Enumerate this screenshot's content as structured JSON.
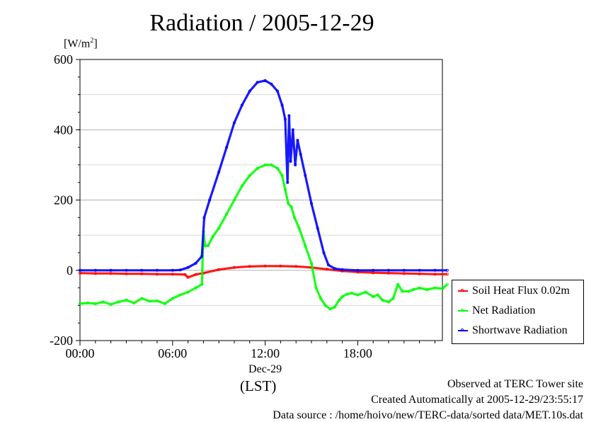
{
  "title": "Radiation / 2005-12-29",
  "unit_label": "[W/m",
  "unit_sup": "2",
  "unit_close": "]",
  "xlabel_date": "Dec-29",
  "xlabel_tz": "(LST)",
  "footer": {
    "observed": "Observed at TERC Tower site",
    "created": "Created Automatically at 2005-12-29/23:55:17",
    "source": "Data source : /home/hoivo/new/TERC-data/sorted  data/MET.10s.dat"
  },
  "colors": {
    "soil": "#ff0000",
    "net": "#00ff00",
    "short": "#0000ff",
    "grid": "#b0b0b0"
  },
  "chart_data": {
    "type": "line",
    "title": "Radiation / 2005-12-29",
    "ylabel": "[W/m2]",
    "xlabel": "Dec-29 (LST)",
    "xlim": [
      0,
      23.83
    ],
    "ylim": [
      -200,
      600
    ],
    "yticks": [
      -200,
      0,
      200,
      400,
      600
    ],
    "ytick_labels": [
      "-200",
      "0",
      "200",
      "400",
      "600"
    ],
    "xticks": [
      0,
      6,
      12,
      18
    ],
    "xtick_labels": [
      "00:00",
      "06:00",
      "12:00",
      "18:00"
    ],
    "grid": true,
    "legend_position": "right",
    "series": [
      {
        "name": "Soil Heat Flux 0.02m",
        "color": "#ff0000",
        "x": [
          0,
          1,
          2,
          3,
          4,
          5,
          6,
          6.8,
          7,
          7.5,
          8,
          9,
          10,
          11,
          12,
          13,
          14,
          15,
          16,
          17,
          18,
          19,
          20,
          21,
          22,
          23,
          23.8
        ],
        "y": [
          -8,
          -9,
          -9,
          -10,
          -10,
          -11,
          -11,
          -12,
          -20,
          -12,
          -8,
          2,
          8,
          11,
          12,
          12,
          11,
          8,
          3,
          -2,
          -5,
          -7,
          -8,
          -9,
          -10,
          -11,
          -11
        ]
      },
      {
        "name": "Net Radiation",
        "color": "#00ff00",
        "x": [
          0,
          0.5,
          1,
          1.5,
          2,
          2.5,
          3,
          3.5,
          4,
          4.5,
          5,
          5.5,
          6,
          6.5,
          7,
          7.5,
          7.9,
          8.0,
          8.1,
          8.3,
          8.6,
          9,
          9.5,
          10,
          10.5,
          11,
          11.5,
          12,
          12.4,
          12.8,
          13.1,
          13.3,
          13.5,
          13.7,
          13.9,
          14.2,
          14.6,
          15,
          15.3,
          15.6,
          15.9,
          16.2,
          16.5,
          16.8,
          17,
          17.3,
          17.6,
          18,
          18.5,
          19,
          19.3,
          19.6,
          20,
          20.3,
          20.6,
          20.9,
          21.3,
          21.6,
          22,
          22.5,
          23,
          23.5,
          23.8
        ],
        "y": [
          -95,
          -93,
          -95,
          -90,
          -97,
          -90,
          -85,
          -93,
          -80,
          -88,
          -87,
          -95,
          -80,
          -70,
          -62,
          -50,
          -40,
          110,
          70,
          70,
          95,
          120,
          160,
          200,
          240,
          270,
          290,
          300,
          300,
          290,
          270,
          230,
          190,
          180,
          150,
          120,
          70,
          20,
          -50,
          -80,
          -100,
          -110,
          -105,
          -85,
          -75,
          -68,
          -65,
          -70,
          -62,
          -75,
          -70,
          -85,
          -90,
          -80,
          -40,
          -60,
          -60,
          -55,
          -50,
          -55,
          -50,
          -52,
          -40
        ]
      },
      {
        "name": "Shortwave Radiation",
        "color": "#0000ff",
        "x": [
          0,
          1,
          2,
          3,
          4,
          5,
          6,
          6.5,
          7,
          7.5,
          7.9,
          8.05,
          8.4,
          9,
          9.5,
          10,
          10.5,
          11,
          11.5,
          12,
          12.4,
          12.8,
          13.1,
          13.3,
          13.45,
          13.55,
          13.65,
          13.8,
          13.95,
          14.1,
          14.3,
          14.6,
          15,
          15.4,
          15.8,
          16.1,
          16.5,
          17,
          18,
          19,
          20,
          21,
          22,
          23,
          23.8
        ],
        "y": [
          0,
          0,
          0,
          0,
          0,
          0,
          0,
          1,
          8,
          20,
          40,
          150,
          200,
          280,
          350,
          420,
          470,
          510,
          535,
          540,
          530,
          510,
          470,
          430,
          250,
          440,
          310,
          400,
          300,
          370,
          330,
          270,
          190,
          120,
          50,
          15,
          5,
          2,
          0,
          0,
          0,
          0,
          0,
          0,
          0
        ]
      }
    ]
  }
}
